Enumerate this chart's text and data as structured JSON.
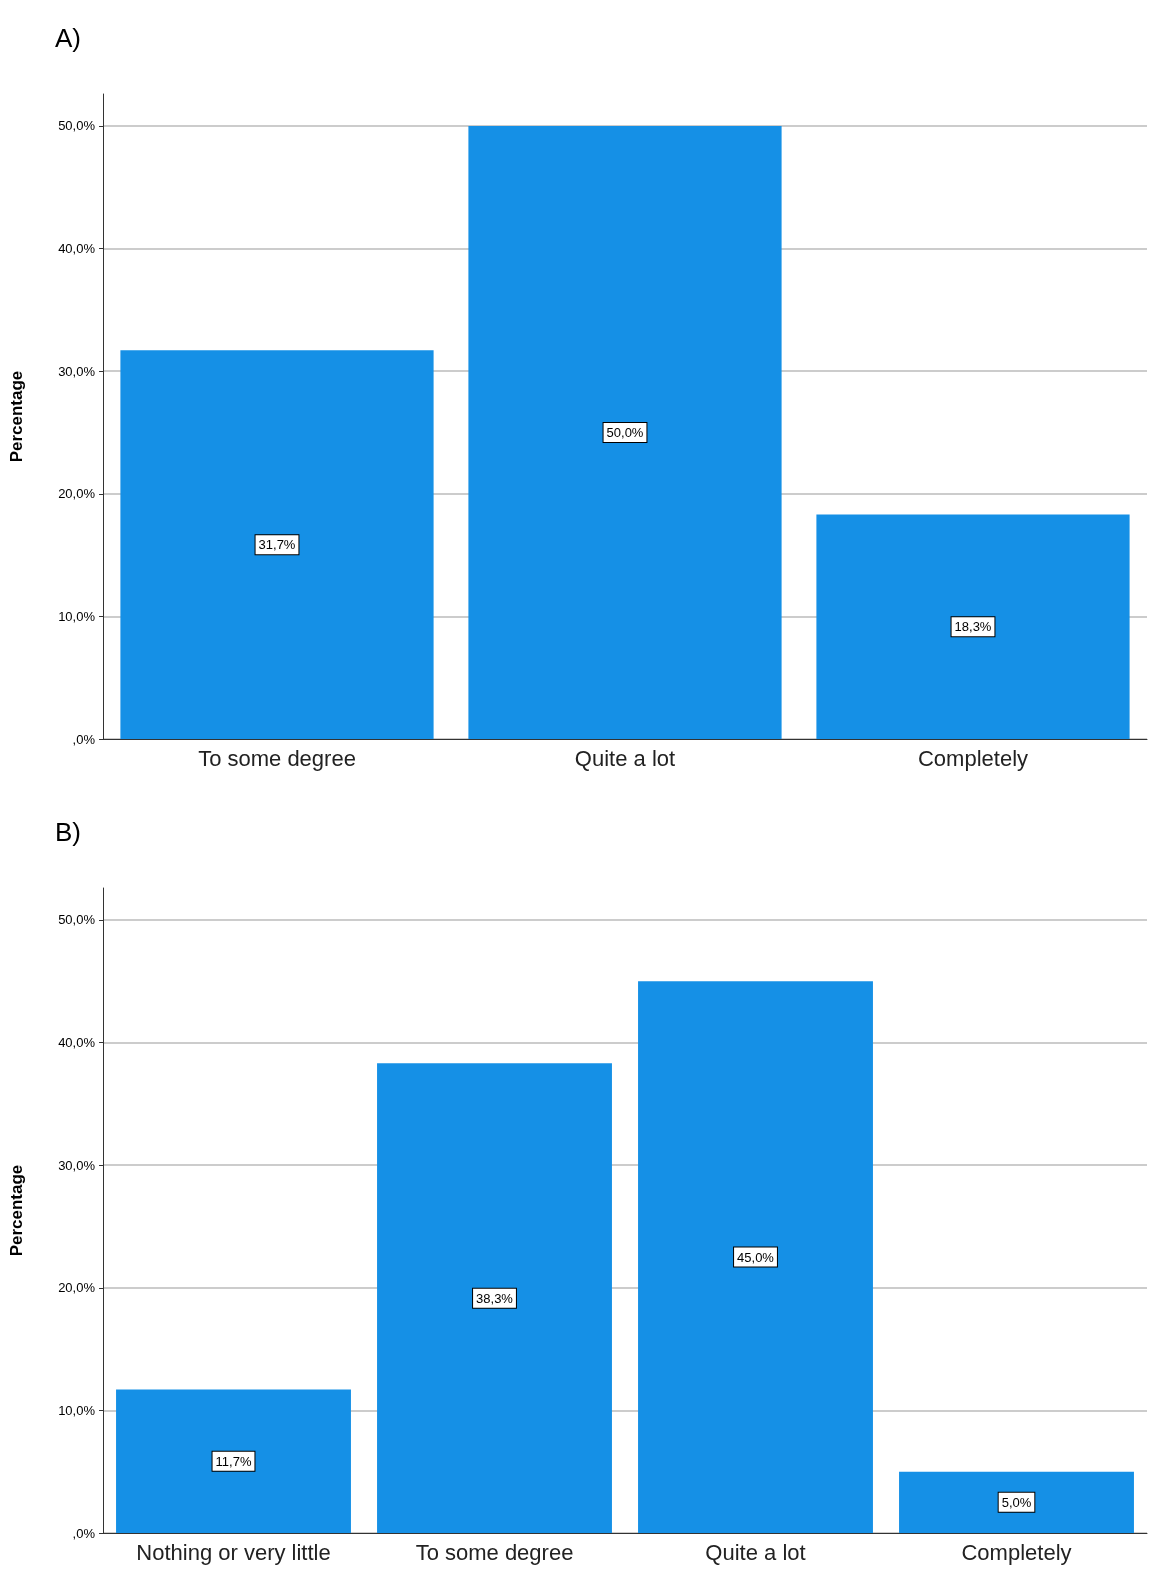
{
  "chart_data": [
    {
      "type": "bar",
      "title": "A)",
      "ylabel": "Percentage",
      "categories": [
        "To some degree",
        "Quite a lot",
        "Completely"
      ],
      "values": [
        31.7,
        50.0,
        18.3
      ],
      "color": "#1590e6",
      "value_labels": [
        "31,7%",
        "50,0%",
        "18,3%"
      ],
      "ylim": [
        0,
        52.6
      ],
      "yticks": [
        {
          "value": 0,
          "label": ",0%"
        },
        {
          "value": 10,
          "label": "10,0%"
        },
        {
          "value": 20,
          "label": "20,0%"
        },
        {
          "value": 30,
          "label": "30,0%"
        },
        {
          "value": 40,
          "label": "40,0%"
        },
        {
          "value": 50,
          "label": "50,0%"
        }
      ],
      "grid": "y"
    },
    {
      "type": "bar",
      "title": "B)",
      "ylabel": "Percentage",
      "categories": [
        "Nothing or very little",
        "To some degree",
        "Quite a lot",
        "Completely"
      ],
      "values": [
        11.7,
        38.3,
        45.0,
        5.0
      ],
      "color": "#1590e6",
      "value_labels": [
        "11,7%",
        "38,3%",
        "45,0%",
        "5,0%"
      ],
      "ylim": [
        0,
        52.6
      ],
      "yticks": [
        {
          "value": 0,
          "label": ",0%"
        },
        {
          "value": 10,
          "label": "10,0%"
        },
        {
          "value": 20,
          "label": "20,0%"
        },
        {
          "value": 30,
          "label": "30,0%"
        },
        {
          "value": 40,
          "label": "40,0%"
        },
        {
          "value": 50,
          "label": "50,0%"
        }
      ],
      "grid": "y"
    }
  ]
}
